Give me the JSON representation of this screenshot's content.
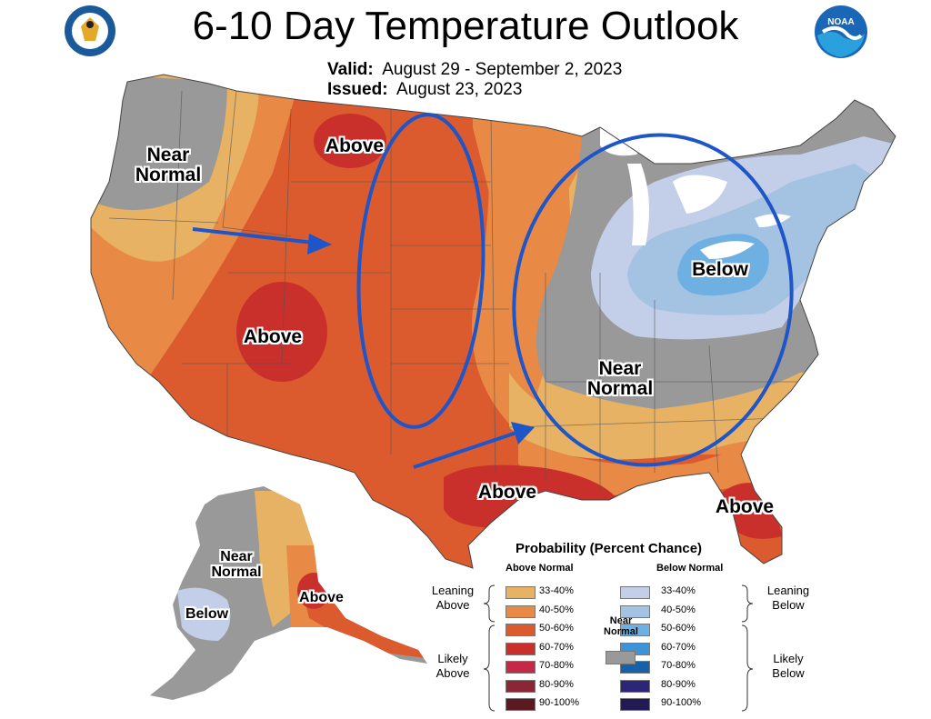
{
  "title": "6-10 Day Temperature Outlook",
  "valid_label": "Valid:",
  "valid_value": "August 29 - September 2, 2023",
  "issued_label": "Issued:",
  "issued_value": "August 23, 2023",
  "logo_left": "commerce-seal",
  "logo_right_text": "NOAA",
  "map_labels": {
    "near_normal_nw": [
      "Near",
      "Normal"
    ],
    "above_north": "Above",
    "above_southwest": "Above",
    "below_ohio": "Below",
    "near_normal_se": [
      "Near",
      "Normal"
    ],
    "above_texas": "Above",
    "above_florida": "Above",
    "ak_near_normal": [
      "Near",
      "Normal"
    ],
    "ak_below": "Below",
    "ak_above": "Above"
  },
  "legend": {
    "title": "Probability (Percent Chance)",
    "above_header": "Above Normal",
    "below_header": "Below Normal",
    "near_normal": [
      "Near",
      "Normal"
    ],
    "near_normal_color": "#999999",
    "leaning_above": [
      "Leaning",
      "Above"
    ],
    "likely_above": [
      "Likely",
      "Above"
    ],
    "leaning_below": [
      "Leaning",
      "Below"
    ],
    "likely_below": [
      "Likely",
      "Below"
    ],
    "above": [
      {
        "range": "33-40%",
        "color": "#e8b265"
      },
      {
        "range": "40-50%",
        "color": "#e88a46"
      },
      {
        "range": "50-60%",
        "color": "#db5b2e"
      },
      {
        "range": "60-70%",
        "color": "#c9302c"
      },
      {
        "range": "70-80%",
        "color": "#c42a47"
      },
      {
        "range": "80-90%",
        "color": "#8b2636"
      },
      {
        "range": "90-100%",
        "color": "#5a1a1f"
      }
    ],
    "below": [
      {
        "range": "33-40%",
        "color": "#c3cfe9"
      },
      {
        "range": "40-50%",
        "color": "#a4c2e2"
      },
      {
        "range": "50-60%",
        "color": "#6fb0e3"
      },
      {
        "range": "60-70%",
        "color": "#3d93d8"
      },
      {
        "range": "70-80%",
        "color": "#1761a8"
      },
      {
        "range": "80-90%",
        "color": "#2d2578"
      },
      {
        "range": "90-100%",
        "color": "#221a55"
      }
    ]
  },
  "colors": {
    "near_normal": "#999999",
    "annotation_blue": "#1e55c8",
    "map_background": "#ffffff"
  }
}
